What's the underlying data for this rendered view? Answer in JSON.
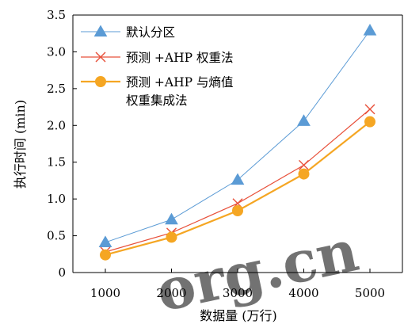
{
  "chart_data": {
    "type": "line",
    "xlabel": "数据量 (万行)",
    "ylabel": "执行时间 (min)",
    "x": [
      1000,
      2000,
      3000,
      4000,
      5000
    ],
    "xticks": [
      "1000",
      "2000",
      "3000",
      "4000",
      "5000"
    ],
    "ylim": [
      0,
      3.5
    ],
    "yticks": [
      "0",
      "0.5",
      "1.0",
      "1.5",
      "2.0",
      "2.5",
      "3.0",
      "3.5"
    ],
    "grid": false,
    "legend_position": "top-left",
    "series": [
      {
        "name": "默认分区",
        "marker": "triangle",
        "color": "#5b9bd5",
        "values": [
          0.41,
          0.72,
          1.26,
          2.06,
          3.29
        ]
      },
      {
        "name": "预测 +AHP 权重法",
        "marker": "x",
        "color": "#e8503a",
        "values": [
          0.28,
          0.54,
          0.94,
          1.46,
          2.22
        ]
      },
      {
        "name": "预测 +AHP 与熵值权重集成法",
        "name_lines": [
          "预测 +AHP 与熵值",
          "权重集成法"
        ],
        "marker": "circle",
        "color": "#f5a623",
        "values": [
          0.24,
          0.48,
          0.84,
          1.34,
          2.05
        ]
      }
    ]
  },
  "watermark": {
    "text": "org.cn"
  }
}
